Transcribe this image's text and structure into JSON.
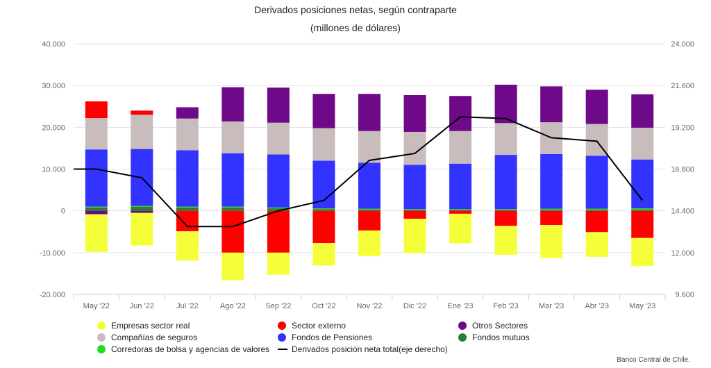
{
  "chart_data": {
    "type": "bar",
    "title": "Derivados posiciones netas, según contraparte",
    "subtitle": "(millones de dólares)",
    "categories": [
      "May '22",
      "Jun '22",
      "Jul '22",
      "Ago '22",
      "Sep '22",
      "Oct '22",
      "Nov '22",
      "Dic '22",
      "Ene '23",
      "Feb '23",
      "Mar '23",
      "Abr '23",
      "May '23"
    ],
    "ylim": [
      -20000,
      40000
    ],
    "y2lim": [
      9600,
      24000
    ],
    "y_ticks": [
      "40.000",
      "30.000",
      "20.000",
      "10.000",
      "0",
      "-10.000",
      "-20.000"
    ],
    "y2_ticks": [
      "24.000",
      "21.600",
      "19.200",
      "16.800",
      "14.400",
      "12.000",
      "9.600"
    ],
    "stacked": true,
    "grid": true,
    "series": [
      {
        "name": "Fondos mutuos",
        "color": "#2e7d32",
        "values": [
          800,
          1000,
          800,
          800,
          600,
          400,
          300,
          200,
          200,
          200,
          200,
          200,
          300
        ]
      },
      {
        "name": "Corredoras de bolsa y agencias de valores",
        "color": "#22dd22",
        "values": [
          200,
          200,
          200,
          200,
          200,
          200,
          200,
          200,
          200,
          200,
          300,
          300,
          300
        ]
      },
      {
        "name": "Fondos de Pensiones",
        "color": "#3333ff",
        "values": [
          13700,
          13600,
          13500,
          12800,
          12700,
          11400,
          11000,
          10600,
          10900,
          13000,
          13100,
          12700,
          11700
        ]
      },
      {
        "name": "Compañías de seguros",
        "color": "#c9bcbc",
        "values": [
          7500,
          8200,
          7600,
          7600,
          7600,
          7800,
          7600,
          7900,
          7800,
          7600,
          7600,
          7600,
          7600
        ]
      },
      {
        "name": "Otros Sectores",
        "color": "#6e0a8a",
        "values": [
          -800,
          -500,
          2700,
          8200,
          8400,
          8200,
          8900,
          8800,
          8400,
          9200,
          8600,
          8200,
          8000
        ]
      },
      {
        "name": "Sector externo",
        "color": "#ff0000",
        "values": [
          4000,
          1000,
          -4900,
          -10000,
          -10000,
          -7700,
          -4700,
          -1900,
          -700,
          -3600,
          -3400,
          -5100,
          -6500
        ]
      },
      {
        "name": "Empresas sector real",
        "color": "#f4ff3a",
        "values": [
          -9000,
          -7800,
          -7000,
          -6600,
          -5300,
          -5400,
          -6100,
          -8200,
          -7100,
          -6900,
          -7900,
          -5900,
          -6700
        ]
      },
      {
        "name": "Derivados posición neta total(eje derecho)",
        "color": "#000000",
        "axis": "right",
        "type": "line",
        "values": [
          16800,
          16300,
          13500,
          13500,
          14400,
          15000,
          17300,
          17700,
          19800,
          19700,
          18600,
          18400,
          15000
        ]
      }
    ],
    "legend": "bottom",
    "legend_order": [
      "Empresas sector real",
      "Sector externo",
      "Otros Sectores",
      "Compañías de seguros",
      "Fondos de Pensiones",
      "Fondos mutuos",
      "Corredoras de bolsa y agencias de valores",
      "Derivados posición neta total(eje derecho)"
    ],
    "line_start_value": 16800,
    "credit": "Banco Central de Chile."
  }
}
